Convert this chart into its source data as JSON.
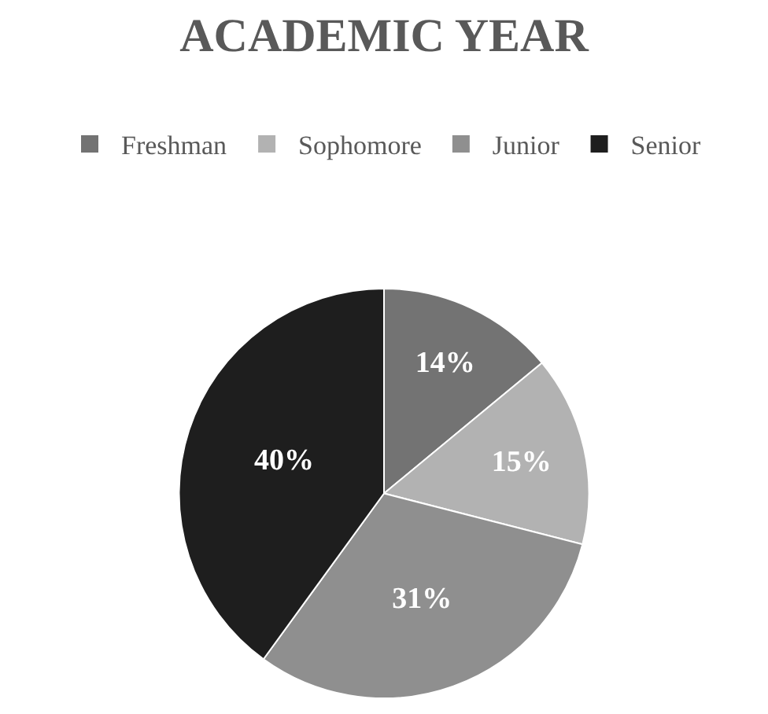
{
  "chart_data": {
    "type": "pie",
    "title": "ACADEMIC YEAR",
    "categories": [
      "Freshman",
      "Sophomore",
      "Junior",
      "Senior"
    ],
    "values": [
      14,
      15,
      31,
      40
    ],
    "colors": [
      "#737373",
      "#b2b2b2",
      "#8f8f8f",
      "#1e1e1e"
    ],
    "value_labels": [
      "14%",
      "15%",
      "31%",
      "40%"
    ],
    "legend": "top"
  }
}
